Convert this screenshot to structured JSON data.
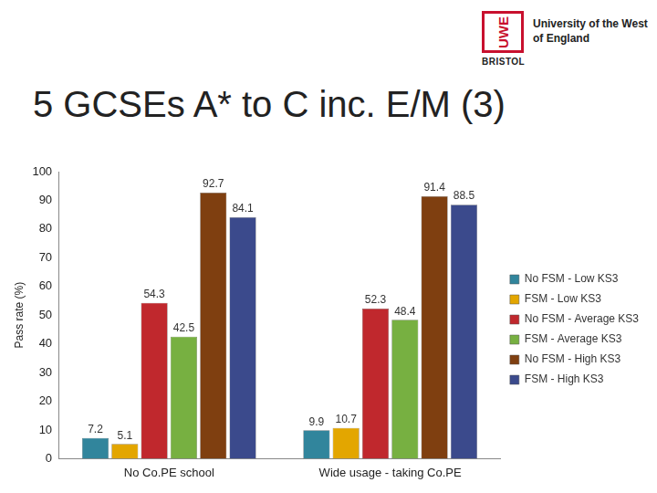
{
  "header": {
    "title": "5 GCSEs A* to C inc. E/M (3)",
    "logo_mark": "UWE",
    "logo_sub": "BRISTOL",
    "logo_text": "University of the West of England"
  },
  "chart_data": {
    "type": "bar",
    "y_label": "Pass rate (%)",
    "categories": [
      "No Co.PE school",
      "Wide usage - taking Co.PE"
    ],
    "series": [
      {
        "name": "No FSM - Low KS3",
        "color": "#31859c",
        "values": [
          7.2,
          9.9
        ]
      },
      {
        "name": "FSM - Low KS3",
        "color": "#e3a600",
        "values": [
          5.1,
          10.7
        ]
      },
      {
        "name": "No FSM - Average KS3",
        "color": "#c0282d",
        "values": [
          54.3,
          52.3
        ]
      },
      {
        "name": "FSM - Average KS3",
        "color": "#77b041",
        "values": [
          42.5,
          48.4
        ]
      },
      {
        "name": "No FSM - High KS3",
        "color": "#7f3f10",
        "values": [
          92.7,
          91.4
        ]
      },
      {
        "name": "FSM - High KS3",
        "color": "#3b4a8c",
        "values": [
          84.1,
          88.5
        ]
      }
    ],
    "ylim": [
      0,
      100
    ],
    "yticks": [
      0,
      10,
      20,
      30,
      40,
      50,
      60,
      70,
      80,
      90,
      100
    ],
    "grid": false,
    "legend": "right",
    "data_labels": true
  }
}
